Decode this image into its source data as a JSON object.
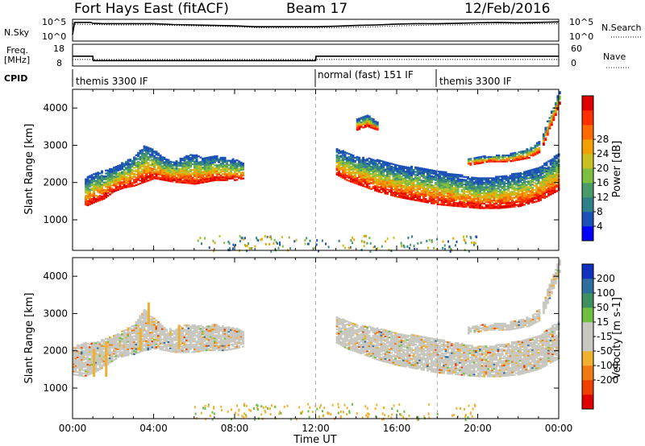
{
  "header": {
    "station": "Fort Hays East (fitACF)",
    "beam": "Beam 17",
    "date": "12/Feb/2016"
  },
  "chart_data": [
    {
      "type": "line",
      "panel": "noise",
      "left_label": "N.Sky",
      "right_label": "N.Search",
      "y_ticks": [
        "10^5",
        "10^0"
      ],
      "right_ticks": [
        "10^5",
        "10^0"
      ],
      "series": [
        {
          "label": "N.Sky",
          "style": "solid",
          "x": [
            0,
            0.1,
            0.9,
            1,
            1.5,
            2,
            3,
            4,
            5,
            6,
            7,
            8,
            9,
            10,
            11,
            12,
            13,
            14,
            15,
            16,
            17,
            18,
            19,
            20,
            21,
            22,
            23,
            24
          ],
          "y": [
            1.5,
            4.3,
            4.3,
            4.1,
            4.0,
            4.0,
            4.0,
            4.0,
            3.8,
            3.7,
            3.6,
            3.5,
            3.3,
            3.3,
            3.3,
            3.3,
            3.4,
            3.6,
            3.7,
            3.9,
            4.0,
            4.0,
            4.1,
            4.2,
            4.3,
            4.2,
            4.3,
            4.4
          ]
        },
        {
          "label": "N.Search",
          "style": "dotted",
          "x": [
            0,
            1,
            2,
            3,
            4,
            5,
            6,
            7,
            8,
            9,
            10,
            11,
            12,
            13,
            14,
            15,
            16,
            17,
            18,
            19,
            20,
            21,
            22,
            23,
            24
          ],
          "y": [
            3.9,
            3.8,
            3.7,
            3.7,
            3.7,
            3.6,
            3.5,
            3.4,
            3.3,
            3.1,
            3.0,
            3.0,
            3.0,
            3.1,
            3.2,
            3.3,
            3.5,
            3.6,
            3.7,
            3.7,
            3.8,
            3.9,
            3.9,
            4.0,
            4.0
          ]
        }
      ]
    },
    {
      "type": "line",
      "panel": "frequency",
      "left_label_1": "Freq.",
      "left_label_2": "[MHz]",
      "right_label": "Nave",
      "y_ticks": [
        "18",
        "8"
      ],
      "right_ticks": [
        "60",
        "0"
      ],
      "series": [
        {
          "label": "Freq. [MHz]",
          "style": "solid",
          "x": [
            0,
            1,
            1.02,
            12,
            12.02,
            24
          ],
          "y": [
            12.5,
            12.5,
            10.5,
            10.5,
            12.5,
            12.5
          ]
        },
        {
          "label": "Nave",
          "style": "dotted",
          "x": [
            0,
            24
          ],
          "y": [
            18,
            18
          ]
        }
      ]
    },
    {
      "type": "table",
      "panel": "cpid",
      "label": "CPID",
      "segments": [
        {
          "start": 0,
          "name": "themis 3300 IF"
        },
        {
          "start": 12,
          "name": "normal (fast) 151 IF"
        },
        {
          "start": 18,
          "name": "themis 3300 IF"
        }
      ]
    },
    {
      "type": "heatmap",
      "panel": "power",
      "ylabel": "Slant Range [km]",
      "y_ticks": [
        1000,
        2000,
        3000,
        4000
      ],
      "ylim": [
        180,
        4500
      ],
      "xlim": [
        0,
        24
      ],
      "colorbar": {
        "label": "Power [dB]",
        "ticks": [
          4,
          8,
          12,
          16,
          20,
          24,
          28
        ],
        "colors": [
          "#0000ff",
          "#1c52b8",
          "#2f7f8a",
          "#4a9a6a",
          "#7fbf3f",
          "#c8c020",
          "#f0a000",
          "#ff6a00",
          "#ff3000",
          "#e00000"
        ]
      },
      "regions": [
        {
          "x": [
            0.6,
            1,
            1.5,
            2,
            2.5,
            3,
            3.5,
            4,
            4.5,
            5,
            5.5,
            6,
            6.5,
            7,
            7.5,
            8,
            8.4
          ],
          "lo": [
            1350,
            1450,
            1550,
            1750,
            1850,
            1900,
            2000,
            2100,
            2050,
            2000,
            1980,
            1950,
            2000,
            2050,
            2050,
            2050,
            2100
          ],
          "hi": [
            2100,
            2250,
            2300,
            2400,
            2550,
            2700,
            3000,
            2850,
            2650,
            2550,
            2700,
            2750,
            2650,
            2700,
            2650,
            2600,
            2500
          ]
        },
        {
          "x": [
            13,
            13.5,
            14,
            15,
            16,
            17,
            18,
            19,
            20,
            21,
            22,
            23,
            23.5,
            24
          ],
          "lo": [
            2200,
            2050,
            1950,
            1750,
            1600,
            1500,
            1400,
            1350,
            1300,
            1300,
            1350,
            1500,
            1650,
            1800
          ],
          "hi": [
            2900,
            2800,
            2700,
            2600,
            2450,
            2400,
            2300,
            2200,
            2100,
            2150,
            2250,
            2400,
            2600,
            2800
          ]
        },
        {
          "x": [
            19.5,
            20.5,
            21.5,
            22.5,
            23
          ],
          "lo": [
            2450,
            2550,
            2550,
            2650,
            2800
          ],
          "hi": [
            2650,
            2700,
            2750,
            2900,
            3100
          ]
        },
        {
          "x": [
            23.2,
            23.5,
            23.8,
            24
          ],
          "lo": [
            3000,
            3400,
            3800,
            4100
          ],
          "hi": [
            3300,
            3800,
            4200,
            4450
          ]
        },
        {
          "x": [
            14,
            14.5,
            15
          ],
          "lo": [
            3400,
            3500,
            3400
          ],
          "hi": [
            3700,
            3800,
            3600
          ]
        }
      ]
    },
    {
      "type": "heatmap",
      "panel": "velocity",
      "ylabel": "Slant Range [km]",
      "xlabel": "Time UT",
      "y_ticks": [
        1000,
        2000,
        3000,
        4000
      ],
      "ylim": [
        180,
        4500
      ],
      "xlim": [
        0,
        24
      ],
      "x_ticks": [
        "00:00",
        "04:00",
        "08:00",
        "12:00",
        "16:00",
        "20:00",
        "00:00"
      ],
      "colorbar": {
        "label": "Velocity [m s-1]",
        "ticks": [
          200,
          100,
          50,
          15,
          -15,
          -50,
          -100,
          -200
        ],
        "colors": [
          "#1030c0",
          "#2f6f9f",
          "#3f8f5f",
          "#6fc040",
          "#c8c8c0",
          "#c8c8c0",
          "#f0b030",
          "#f07a10",
          "#f04000",
          "#e00000"
        ]
      },
      "regions": [
        {
          "x": [
            0,
            0.5,
            1,
            1.5,
            2,
            2.5,
            3,
            3.5,
            4,
            4.5,
            5,
            5.5,
            6,
            6.5,
            7,
            7.5,
            8,
            8.4
          ],
          "lo": [
            1350,
            1300,
            1400,
            1550,
            1750,
            1850,
            1900,
            2000,
            2050,
            2000,
            1950,
            1950,
            1950,
            2000,
            2000,
            2000,
            2050,
            2100
          ],
          "hi": [
            2100,
            2200,
            2200,
            2300,
            2400,
            2550,
            2700,
            3100,
            2850,
            2600,
            2550,
            2700,
            2700,
            2650,
            2700,
            2650,
            2600,
            2500
          ]
        },
        {
          "x": [
            13,
            13.5,
            14,
            15,
            16,
            17,
            18,
            19,
            20,
            21,
            22,
            23,
            23.5,
            24
          ],
          "lo": [
            2200,
            2050,
            1950,
            1750,
            1600,
            1500,
            1400,
            1350,
            1300,
            1300,
            1350,
            1500,
            1650,
            1800
          ],
          "hi": [
            2900,
            2800,
            2700,
            2600,
            2450,
            2400,
            2300,
            2200,
            2100,
            2150,
            2250,
            2400,
            2600,
            2800
          ]
        },
        {
          "x": [
            19.5,
            20.5,
            21.5,
            22.5,
            23
          ],
          "lo": [
            2450,
            2550,
            2550,
            2650,
            2800
          ],
          "hi": [
            2650,
            2700,
            2750,
            2900,
            3100
          ]
        },
        {
          "x": [
            23.2,
            23.5,
            23.8,
            24
          ],
          "lo": [
            3000,
            3400,
            3800,
            4100
          ],
          "hi": [
            3300,
            3800,
            4200,
            4450
          ]
        }
      ],
      "orange_streaks": [
        {
          "x": 1.0,
          "lo": 1300,
          "hi": 2050
        },
        {
          "x": 1.6,
          "lo": 1300,
          "hi": 2250
        },
        {
          "x": 3.3,
          "lo": 2000,
          "hi": 2600
        },
        {
          "x": 3.7,
          "lo": 2700,
          "hi": 3300
        },
        {
          "x": 5.2,
          "lo": 2050,
          "hi": 2700
        }
      ]
    }
  ]
}
